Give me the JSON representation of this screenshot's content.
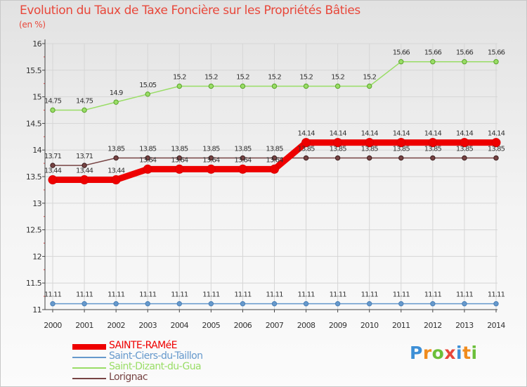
{
  "title": "Evolution du Taux de Taxe Foncière sur les Propriétés Bâties",
  "unit_label": "(en %)",
  "chart_data": {
    "type": "line",
    "title": "Evolution du Taux de Taxe Foncière sur les Propriétés Bâties",
    "ylabel": "(en %)",
    "xlabel": "",
    "x": [
      "2000",
      "2001",
      "2002",
      "2003",
      "2004",
      "2005",
      "2006",
      "2007",
      "2008",
      "2009",
      "2010",
      "2011",
      "2012",
      "2013",
      "2014"
    ],
    "ylim": [
      11,
      16
    ],
    "yticks": [
      "11",
      "11.5",
      "12",
      "12.5",
      "13",
      "13.5",
      "14",
      "14.5",
      "15",
      "15.5",
      "16"
    ],
    "legend_position": "bottom-left",
    "series": [
      {
        "name": "Saint-Ciers-du-Taillon",
        "color": "#6699cc",
        "values": [
          11.11,
          11.11,
          11.11,
          11.11,
          11.11,
          11.11,
          11.11,
          11.11,
          11.11,
          11.11,
          11.11,
          11.11,
          11.11,
          11.11,
          11.11
        ],
        "labels": [
          "11.11",
          "11.11",
          "11.11",
          "11.11",
          "11.11",
          "11.11",
          "11.11",
          "11.11",
          "11.11",
          "11.11",
          "11.11",
          "11.11",
          "11.11",
          "11.11",
          "11.11"
        ]
      },
      {
        "name": "Saint-Dizant-du-Gua",
        "color": "#99dd66",
        "values": [
          14.75,
          14.75,
          14.9,
          15.05,
          15.2,
          15.2,
          15.2,
          15.2,
          15.2,
          15.2,
          15.2,
          15.66,
          15.66,
          15.66,
          15.66
        ],
        "labels": [
          "14.75",
          "14.75",
          "14.9",
          "15.05",
          "15.2",
          "15.2",
          "15.2",
          "15.2",
          "15.2",
          "15.2",
          "15.2",
          "15.66",
          "15.66",
          "15.66",
          "15.66"
        ]
      },
      {
        "name": "Lorignac",
        "color": "#774444",
        "values": [
          13.71,
          13.71,
          13.85,
          13.85,
          13.85,
          13.85,
          13.85,
          13.85,
          13.85,
          13.85,
          13.85,
          13.85,
          13.85,
          13.85,
          13.85
        ],
        "labels": [
          "13.71",
          "13.71",
          "13.85",
          "13.85",
          "13.85",
          "13.85",
          "13.85",
          "13.85",
          "13.85",
          "13.85",
          "13.85",
          "13.85",
          "13.85",
          "13.85",
          "13.85"
        ]
      },
      {
        "name": "SAINTE-RAMéE",
        "color": "#ee0000",
        "values": [
          13.44,
          13.44,
          13.44,
          13.64,
          13.64,
          13.64,
          13.64,
          13.64,
          14.14,
          14.14,
          14.14,
          14.14,
          14.14,
          14.14,
          14.14
        ],
        "labels": [
          "13.44",
          "13.44",
          "13.44",
          "13.64",
          "13.64",
          "13.64",
          "13.64",
          "13.64",
          "14.14",
          "14.14",
          "14.14",
          "14.14",
          "14.14",
          "14.14",
          "14.14"
        ]
      }
    ]
  },
  "legend": [
    {
      "label": "SAINTE-RAMéE",
      "color": "#ee0000"
    },
    {
      "label": "Saint-Ciers-du-Taillon",
      "color": "#6699cc"
    },
    {
      "label": "Saint-Dizant-du-Gua",
      "color": "#99dd66"
    },
    {
      "label": "Lorignac",
      "color": "#774444"
    }
  ],
  "logo": {
    "letters": [
      "P",
      "r",
      "o",
      "x",
      "i",
      "t",
      "i"
    ],
    "colors": [
      "#3d8fd6",
      "#f08c1e",
      "#6bbf3a",
      "#e8473a",
      "#3d8fd6",
      "#f08c1e",
      "#6bbf3a"
    ]
  }
}
